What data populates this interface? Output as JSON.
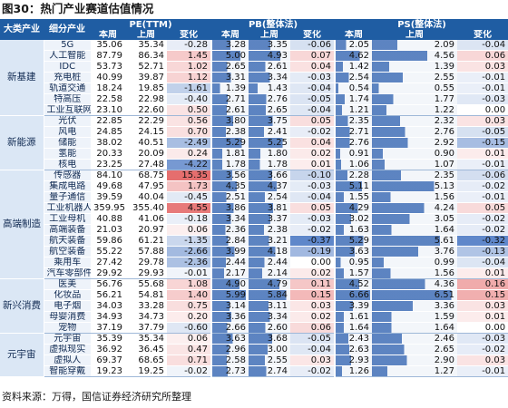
{
  "title": "图30：热门产业赛道估值情况",
  "source": "资料来源：万得，国信证券经济研究所整理",
  "header": {
    "major": "大类产业",
    "minor": "细分产业",
    "pe": "PE(TTM)",
    "pb": "PB(整体法)",
    "ps": "PS(整体法)",
    "this_week": "本周",
    "last_week": "上周",
    "change": "变化"
  },
  "colors": {
    "header_bg": "#1f5da3",
    "positive_change": "#e05050",
    "negative_change": "#3f6fbf",
    "level_bar": "#2f62b0"
  },
  "groups": [
    {
      "name": "新基建",
      "rows": [
        {
          "name": "5G",
          "pe": [
            "35.06",
            "35.34",
            "-0.28"
          ],
          "pb": [
            "3.28",
            "3.35",
            "-0.06"
          ],
          "ps": [
            "2.05",
            "2.09",
            "-0.04"
          ]
        },
        {
          "name": "人工智能",
          "pe": [
            "87.79",
            "86.34",
            "1.45"
          ],
          "pb": [
            "5.00",
            "4.93",
            "0.07"
          ],
          "ps": [
            "4.62",
            "4.56",
            "0.06"
          ]
        },
        {
          "name": "IDC",
          "pe": [
            "53.73",
            "52.71",
            "1.02"
          ],
          "pb": [
            "2.65",
            "2.61",
            "0.04"
          ],
          "ps": [
            "1.42",
            "1.39",
            "0.03"
          ]
        },
        {
          "name": "充电桩",
          "pe": [
            "40.99",
            "39.87",
            "1.12"
          ],
          "pb": [
            "3.31",
            "3.34",
            "-0.03"
          ],
          "ps": [
            "2.54",
            "2.55",
            "-0.01"
          ]
        },
        {
          "name": "轨道交通",
          "pe": [
            "18.24",
            "19.85",
            "-1.61"
          ],
          "pb": [
            "1.39",
            "1.43",
            "-0.04"
          ],
          "ps": [
            "0.54",
            "0.55",
            "-0.01"
          ]
        },
        {
          "name": "特高压",
          "pe": [
            "22.58",
            "22.98",
            "-0.40"
          ],
          "pb": [
            "2.71",
            "2.76",
            "-0.05"
          ],
          "ps": [
            "1.74",
            "1.77",
            "-0.03"
          ]
        },
        {
          "name": "工业互联网",
          "pe": [
            "23.10",
            "22.60",
            "0.50"
          ],
          "pb": [
            "2.61",
            "2.65",
            "-0.04"
          ],
          "ps": [
            "1.21",
            "1.22",
            "0.00"
          ]
        }
      ]
    },
    {
      "name": "新能源",
      "rows": [
        {
          "name": "光伏",
          "pe": [
            "22.85",
            "22.29",
            "0.56"
          ],
          "pb": [
            "3.80",
            "3.75",
            "0.05"
          ],
          "ps": [
            "2.35",
            "2.32",
            "0.03"
          ]
        },
        {
          "name": "风电",
          "pe": [
            "24.85",
            "24.15",
            "0.70"
          ],
          "pb": [
            "2.38",
            "2.41",
            "-0.02"
          ],
          "ps": [
            "2.71",
            "2.76",
            "-0.05"
          ]
        },
        {
          "name": "储能",
          "pe": [
            "38.02",
            "40.51",
            "-2.49"
          ],
          "pb": [
            "5.29",
            "5.25",
            "0.04"
          ],
          "ps": [
            "2.76",
            "2.92",
            "-0.15"
          ]
        },
        {
          "name": "氢能",
          "pe": [
            "20.33",
            "20.09",
            "0.24"
          ],
          "pb": [
            "1.81",
            "1.80",
            "0.02"
          ],
          "ps": [
            "0.91",
            "0.90",
            "0.01"
          ]
        },
        {
          "name": "核电",
          "pe": [
            "23.25",
            "27.48",
            "-4.22"
          ],
          "pb": [
            "1.78",
            "1.78",
            "0.01"
          ],
          "ps": [
            "1.06",
            "1.07",
            "-0.01"
          ]
        }
      ]
    },
    {
      "name": "高端制造",
      "rows": [
        {
          "name": "传感器",
          "pe": [
            "84.10",
            "68.75",
            "15.35"
          ],
          "pb": [
            "3.56",
            "3.66",
            "-0.10"
          ],
          "ps": [
            "2.28",
            "2.35",
            "-0.06"
          ]
        },
        {
          "name": "集成电路",
          "pe": [
            "49.68",
            "47.95",
            "1.73"
          ],
          "pb": [
            "4.35",
            "4.37",
            "-0.03"
          ],
          "ps": [
            "5.11",
            "5.13",
            "-0.02"
          ]
        },
        {
          "name": "量子通信",
          "pe": [
            "39.59",
            "40.04",
            "-0.45"
          ],
          "pb": [
            "2.51",
            "2.54",
            "-0.04"
          ],
          "ps": [
            "1.55",
            "1.56",
            "-0.01"
          ]
        },
        {
          "name": "工业机器人",
          "pe": [
            "359.95",
            "355.40",
            "4.55"
          ],
          "pb": [
            "3.86",
            "3.81",
            "0.05"
          ],
          "ps": [
            "4.29",
            "4.24",
            "0.05"
          ]
        },
        {
          "name": "工业母机",
          "pe": [
            "40.88",
            "41.06",
            "-0.18"
          ],
          "pb": [
            "3.34",
            "3.37",
            "-0.03"
          ],
          "ps": [
            "3.02",
            "3.05",
            "-0.02"
          ]
        },
        {
          "name": "高端装备",
          "pe": [
            "21.03",
            "20.97",
            "0.06"
          ],
          "pb": [
            "2.36",
            "2.38",
            "-0.02"
          ],
          "ps": [
            "1.63",
            "1.64",
            "-0.02"
          ]
        },
        {
          "name": "航天装备",
          "pe": [
            "59.86",
            "61.21",
            "-1.35"
          ],
          "pb": [
            "2.84",
            "3.21",
            "-0.37"
          ],
          "ps": [
            "5.29",
            "5.61",
            "-0.32"
          ]
        },
        {
          "name": "航空装备",
          "pe": [
            "55.22",
            "57.88",
            "-2.66"
          ],
          "pb": [
            "3.99",
            "4.18",
            "-0.19"
          ],
          "ps": [
            "3.63",
            "3.76",
            "-0.13"
          ]
        },
        {
          "name": "乘用车",
          "pe": [
            "27.42",
            "29.78",
            "-2.36"
          ],
          "pb": [
            "2.44",
            "2.44",
            "0.00"
          ],
          "ps": [
            "0.95",
            "0.99",
            "-0.04"
          ]
        },
        {
          "name": "汽车零部件",
          "pe": [
            "29.92",
            "29.93",
            "-0.01"
          ],
          "pb": [
            "2.17",
            "2.14",
            "0.02"
          ],
          "ps": [
            "1.57",
            "1.56",
            "0.01"
          ]
        }
      ]
    },
    {
      "name": "新兴消费",
      "rows": [
        {
          "name": "医美",
          "pe": [
            "56.76",
            "55.68",
            "1.08"
          ],
          "pb": [
            "4.90",
            "4.79",
            "0.11"
          ],
          "ps": [
            "4.52",
            "4.36",
            "0.16"
          ]
        },
        {
          "name": "化妆品",
          "pe": [
            "56.21",
            "54.81",
            "1.40"
          ],
          "pb": [
            "5.99",
            "5.84",
            "0.15"
          ],
          "ps": [
            "6.66",
            "6.51",
            "0.15"
          ]
        },
        {
          "name": "电子烟",
          "pe": [
            "34.03",
            "33.28",
            "0.75"
          ],
          "pb": [
            "3.14",
            "3.11",
            "0.03"
          ],
          "ps": [
            "3.39",
            "3.36",
            "0.03"
          ]
        },
        {
          "name": "母婴消费",
          "pe": [
            "34.93",
            "34.73",
            "0.20"
          ],
          "pb": [
            "3.36",
            "3.34",
            "0.02"
          ],
          "ps": [
            "1.61",
            "1.59",
            "0.01"
          ]
        },
        {
          "name": "宠物",
          "pe": [
            "37.19",
            "37.79",
            "-0.60"
          ],
          "pb": [
            "2.66",
            "2.60",
            "0.06"
          ],
          "ps": [
            "1.64",
            "1.64",
            "0.00"
          ]
        }
      ]
    },
    {
      "name": "元宇宙",
      "rows": [
        {
          "name": "元宇宙",
          "pe": [
            "35.39",
            "35.34",
            "0.06"
          ],
          "pb": [
            "3.63",
            "3.68",
            "-0.05"
          ],
          "ps": [
            "2.43",
            "2.46",
            "-0.03"
          ]
        },
        {
          "name": "虚拟现实",
          "pe": [
            "36.92",
            "36.45",
            "0.47"
          ],
          "pb": [
            "2.96",
            "3.00",
            "-0.04"
          ],
          "ps": [
            "2.63",
            "2.65",
            "-0.02"
          ]
        },
        {
          "name": "虚拟人",
          "pe": [
            "69.37",
            "68.65",
            "0.71"
          ],
          "pb": [
            "2.58",
            "2.55",
            "0.03"
          ],
          "ps": [
            "2.93",
            "2.90",
            "0.03"
          ]
        },
        {
          "name": "智能穿戴",
          "pe": [
            "19.23",
            "19.25",
            "-0.02"
          ],
          "pb": [
            "2.73",
            "2.74",
            "-0.02"
          ],
          "ps": [
            "1.26",
            "1.27",
            "-0.01"
          ]
        }
      ]
    }
  ]
}
